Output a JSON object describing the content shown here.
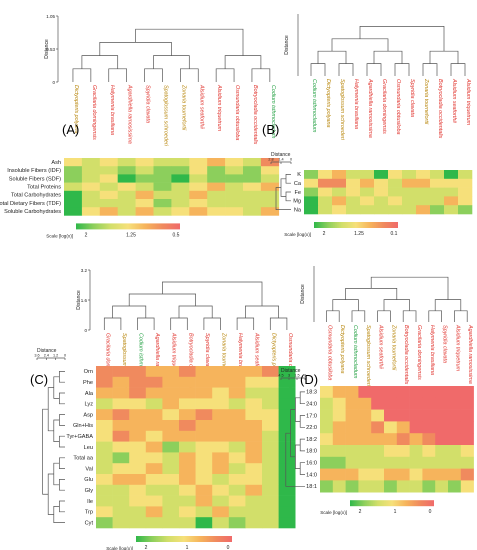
{
  "figure": {
    "colors": {
      "brown": "#b8860b",
      "red": "#e0302a",
      "green": "#1e9e3e",
      "line": "#555555",
      "text": "#222222"
    },
    "heat_colors": [
      "#2fb84a",
      "#8ccf5c",
      "#d2df6a",
      "#f6e07a",
      "#f6b45c",
      "#f08a5e",
      "#f06a6a"
    ]
  },
  "chart_data": [
    {
      "type": "heatmap",
      "panel_label": "(A)",
      "top_axis_label": "Distance",
      "top_ticks": [
        "1.05",
        "0.53",
        "0"
      ],
      "left_axis_label": "Distance",
      "left_ticks": [
        "2.1",
        "1.6",
        "1.2",
        "0"
      ],
      "scale_label": "Scale [log(x)]",
      "scale_ticks": [
        "2",
        "1.25",
        "0.5"
      ],
      "columns": [
        {
          "name": "Dictyopteris polyana",
          "color": "brown"
        },
        {
          "name": "Gracilaria domingensis",
          "color": "red"
        },
        {
          "name": "Halymenia brasiliana",
          "color": "red"
        },
        {
          "name": "Agardhiella ramosissima",
          "color": "red"
        },
        {
          "name": "Spyridia clavata",
          "color": "red"
        },
        {
          "name": "Spatoglossum schroederi",
          "color": "brown"
        },
        {
          "name": "Zonaria tournefortii",
          "color": "brown"
        },
        {
          "name": "Alsidium seaforthii",
          "color": "red"
        },
        {
          "name": "Alsidium triquetrum",
          "color": "red"
        },
        {
          "name": "Osmundaria obtusiloba",
          "color": "red"
        },
        {
          "name": "Botryocladia occidentalis",
          "color": "red"
        },
        {
          "name": "Codium isthmocladum",
          "color": "green"
        }
      ],
      "rows": [
        "Ash",
        "Insoluble Fibers (IDF)",
        "Soluble Fibers (SDF)",
        "Total Proteins",
        "Total Carbohydrates",
        "Total Dietary Fibers (TDF)",
        "Soluble Carbohydrates"
      ],
      "values": [
        [
          0.5,
          0.4,
          0.5,
          0.4,
          0.5,
          0.3,
          0.4,
          0.5,
          0.6,
          0.5,
          0.4,
          0.9
        ],
        [
          0.2,
          0.4,
          0.3,
          0.1,
          0.3,
          0.1,
          0.2,
          0.5,
          0.2,
          0.3,
          0.2,
          0.5
        ],
        [
          0.1,
          0.3,
          0.5,
          0.0,
          0.2,
          0.1,
          0.0,
          0.4,
          0.1,
          0.2,
          0.2,
          0.4
        ],
        [
          0.3,
          0.5,
          0.4,
          0.5,
          0.3,
          0.2,
          0.4,
          0.5,
          0.6,
          0.4,
          0.5,
          0.6
        ],
        [
          0.0,
          0.4,
          0.5,
          0.4,
          0.6,
          0.3,
          0.3,
          0.6,
          0.4,
          0.3,
          0.4,
          0.3
        ],
        [
          0.0,
          0.3,
          0.4,
          0.4,
          0.5,
          0.2,
          0.4,
          0.5,
          0.4,
          0.4,
          0.3,
          0.4
        ],
        [
          0.0,
          0.5,
          0.6,
          0.4,
          0.6,
          0.3,
          0.5,
          0.6,
          0.5,
          0.5,
          0.4,
          0.6
        ]
      ]
    },
    {
      "type": "heatmap",
      "panel_label": "(B)",
      "top_axis_label": "Distance",
      "top_ticks": [],
      "left_axis_label": "Distance",
      "left_ticks": [
        "2.8",
        "1.4",
        "0"
      ],
      "scale_label": "Scale [log(x)]",
      "scale_ticks": [
        "2",
        "1.25",
        "0.1"
      ],
      "columns": [
        {
          "name": "Codium isthmocladum",
          "color": "green"
        },
        {
          "name": "Dictyopteris polyana",
          "color": "brown"
        },
        {
          "name": "Spatoglossum schroederi",
          "color": "brown"
        },
        {
          "name": "Halymenia brasiliana",
          "color": "red"
        },
        {
          "name": "Agardhiella ramosissima",
          "color": "red"
        },
        {
          "name": "Gracilaria domingensis",
          "color": "red"
        },
        {
          "name": "Osmundaria obtusiloba",
          "color": "red"
        },
        {
          "name": "Spyridia clavata",
          "color": "red"
        },
        {
          "name": "Zonaria tournefortii",
          "color": "brown"
        },
        {
          "name": "Botryocladia occidentalis",
          "color": "red"
        },
        {
          "name": "Alsidium seaforthii",
          "color": "red"
        },
        {
          "name": "Alsidium triquetrum",
          "color": "red"
        }
      ],
      "rows": [
        "K",
        "Ca",
        "Fe",
        "Mg",
        "Na"
      ],
      "values": [
        [
          0.1,
          0.5,
          0.6,
          0.3,
          0.4,
          0.0,
          0.5,
          0.4,
          0.5,
          0.4,
          0.0,
          0.3
        ],
        [
          0.5,
          0.9,
          0.8,
          0.5,
          0.6,
          0.5,
          0.4,
          0.6,
          0.6,
          0.5,
          0.5,
          0.5
        ],
        [
          0.2,
          0.5,
          0.4,
          0.5,
          0.3,
          0.5,
          0.4,
          0.3,
          0.4,
          0.3,
          0.4,
          0.5
        ],
        [
          0.0,
          0.4,
          0.6,
          0.3,
          0.5,
          0.4,
          0.5,
          0.4,
          0.3,
          0.4,
          0.6,
          0.5
        ],
        [
          0.0,
          0.3,
          0.5,
          0.3,
          0.4,
          0.3,
          0.3,
          0.4,
          0.6,
          0.2,
          0.4,
          0.2
        ]
      ]
    },
    {
      "type": "heatmap",
      "panel_label": "(C)",
      "top_axis_label": "Distance",
      "top_ticks": [
        "3.2",
        "1.6",
        "0"
      ],
      "left_axis_label": "Distance",
      "left_ticks": [
        "3.6",
        "2.4",
        "1.2",
        "0"
      ],
      "scale_label": "Scale [log(x)]",
      "scale_ticks": [
        "2",
        "1",
        "0"
      ],
      "columns": [
        {
          "name": "Gracilaria domingensis",
          "color": "red"
        },
        {
          "name": "Spatoglossum schroederi",
          "color": "brown"
        },
        {
          "name": "Codium isthmocladum",
          "color": "green"
        },
        {
          "name": "Agardhiella ramosissima",
          "color": "red"
        },
        {
          "name": "Alsidium triquetrum",
          "color": "red"
        },
        {
          "name": "Botryocladia occidentalis",
          "color": "red"
        },
        {
          "name": "Spyridia clavata",
          "color": "red"
        },
        {
          "name": "Zonaria tournefortii",
          "color": "brown"
        },
        {
          "name": "Halymenia brasiliana",
          "color": "red"
        },
        {
          "name": "Alsidium seaforthii",
          "color": "red"
        },
        {
          "name": "Dictyopteris polyana",
          "color": "brown"
        },
        {
          "name": "Osmundaria obtusiloba",
          "color": "red"
        }
      ],
      "rows": [
        "Orn",
        "Phe",
        "Ala",
        "Lyz",
        "Asp",
        "Gln+His",
        "Tyr+GABA",
        "Leu",
        "Total aa",
        "Val",
        "Glu",
        "Gly",
        "Ile",
        "Trp",
        "Cyt"
      ],
      "values": [
        [
          0.8,
          0.9,
          0.8,
          0.7,
          0.6,
          0.8,
          0.7,
          0.6,
          0.7,
          0.7,
          0.8,
          0.0
        ],
        [
          0.8,
          0.7,
          0.9,
          0.8,
          0.6,
          0.7,
          0.6,
          0.7,
          0.6,
          0.5,
          0.5,
          0.0
        ],
        [
          0.6,
          0.6,
          0.8,
          0.7,
          0.6,
          0.6,
          0.6,
          0.5,
          0.6,
          0.4,
          0.4,
          0.0
        ],
        [
          0.4,
          0.5,
          0.5,
          0.4,
          0.6,
          0.5,
          0.5,
          0.5,
          0.4,
          0.5,
          0.3,
          0.0
        ],
        [
          0.7,
          0.8,
          0.7,
          0.6,
          0.5,
          0.7,
          0.8,
          0.7,
          0.6,
          0.5,
          0.5,
          0.0
        ],
        [
          0.5,
          0.6,
          0.6,
          0.7,
          0.7,
          0.8,
          0.7,
          0.6,
          0.7,
          0.6,
          0.5,
          0.0
        ],
        [
          0.5,
          0.8,
          0.6,
          0.5,
          0.7,
          0.6,
          0.7,
          0.6,
          0.7,
          0.6,
          0.4,
          0.0
        ],
        [
          0.4,
          0.5,
          0.5,
          0.6,
          0.1,
          0.4,
          0.5,
          0.5,
          0.4,
          0.6,
          0.4,
          0.0
        ],
        [
          0.4,
          0.1,
          0.5,
          0.5,
          0.3,
          0.6,
          0.5,
          0.6,
          0.5,
          0.6,
          0.3,
          0.0
        ],
        [
          0.4,
          0.5,
          0.5,
          0.6,
          0.4,
          0.6,
          0.5,
          0.6,
          0.3,
          0.5,
          0.4,
          0.0
        ],
        [
          0.5,
          0.6,
          0.6,
          0.5,
          0.5,
          0.6,
          0.5,
          0.4,
          0.5,
          0.5,
          0.4,
          0.0
        ],
        [
          0.3,
          0.4,
          0.5,
          0.4,
          0.4,
          0.5,
          0.6,
          0.5,
          0.3,
          0.6,
          0.4,
          0.0
        ],
        [
          0.4,
          0.4,
          0.5,
          0.5,
          0.3,
          0.4,
          0.6,
          0.4,
          0.5,
          0.4,
          0.3,
          0.0
        ],
        [
          0.5,
          0.4,
          0.4,
          0.6,
          0.4,
          0.5,
          0.3,
          0.6,
          0.4,
          0.3,
          0.4,
          0.0
        ],
        [
          0.2,
          0.3,
          0.4,
          0.3,
          0.4,
          0.3,
          0.0,
          0.4,
          0.2,
          0.3,
          0.3,
          0.0
        ]
      ]
    },
    {
      "type": "heatmap",
      "panel_label": "(D)",
      "top_axis_label": "Distance",
      "top_ticks": [],
      "left_axis_label": "Distance",
      "left_ticks": [
        "4.5",
        "3",
        "1.5",
        "0"
      ],
      "scale_label": "Scale [log(x)]",
      "scale_ticks": [
        "2",
        "1",
        "0"
      ],
      "columns": [
        {
          "name": "Osmundaria obtusiloba",
          "color": "red"
        },
        {
          "name": "Dictyopteris polyana",
          "color": "brown"
        },
        {
          "name": "Codium isthmocladum",
          "color": "green"
        },
        {
          "name": "Spatoglossum schroederi",
          "color": "brown"
        },
        {
          "name": "Alsidium seaforthii",
          "color": "red"
        },
        {
          "name": "Zonaria tournefortii",
          "color": "brown"
        },
        {
          "name": "Botryocladia occidentalis",
          "color": "red"
        },
        {
          "name": "Gracilaria domingensis",
          "color": "red"
        },
        {
          "name": "Halymenia brasiliana",
          "color": "red"
        },
        {
          "name": "Spyridia clavata",
          "color": "red"
        },
        {
          "name": "Alsidium triquetrum",
          "color": "red"
        },
        {
          "name": "Agardhiella ramosissima",
          "color": "red"
        }
      ],
      "rows": [
        "18:3",
        "24:0",
        "17:0",
        "22:0",
        "18:2",
        "18:0",
        "16:0",
        "14:0",
        "18:1"
      ],
      "values": [
        [
          0.5,
          0.6,
          0.7,
          1.0,
          1.0,
          1.0,
          1.0,
          1.0,
          1.0,
          1.0,
          1.0,
          1.0
        ],
        [
          0.4,
          0.5,
          0.7,
          0.6,
          1.0,
          1.0,
          1.0,
          1.0,
          1.0,
          1.0,
          1.0,
          1.0
        ],
        [
          0.3,
          0.5,
          0.6,
          0.7,
          0.5,
          1.0,
          1.0,
          1.0,
          1.0,
          1.0,
          1.0,
          1.0
        ],
        [
          0.4,
          0.6,
          0.7,
          0.7,
          0.8,
          0.5,
          0.6,
          1.0,
          1.0,
          1.0,
          1.0,
          1.0
        ],
        [
          0.5,
          0.6,
          0.7,
          0.6,
          0.7,
          0.6,
          0.8,
          0.7,
          0.8,
          1.0,
          1.0,
          1.0
        ],
        [
          0.3,
          0.3,
          0.4,
          0.4,
          0.3,
          0.5,
          0.5,
          0.4,
          0.5,
          0.4,
          0.4,
          0.5
        ],
        [
          0.2,
          0.2,
          0.3,
          0.4,
          0.3,
          0.4,
          0.3,
          0.4,
          0.4,
          0.3,
          0.3,
          0.4
        ],
        [
          0.6,
          0.6,
          0.6,
          0.5,
          0.5,
          0.6,
          0.7,
          0.5,
          0.7,
          0.6,
          0.7,
          0.8
        ],
        [
          0.2,
          0.3,
          0.2,
          0.3,
          0.3,
          0.2,
          0.4,
          0.3,
          0.2,
          0.3,
          0.2,
          0.5
        ]
      ]
    }
  ]
}
